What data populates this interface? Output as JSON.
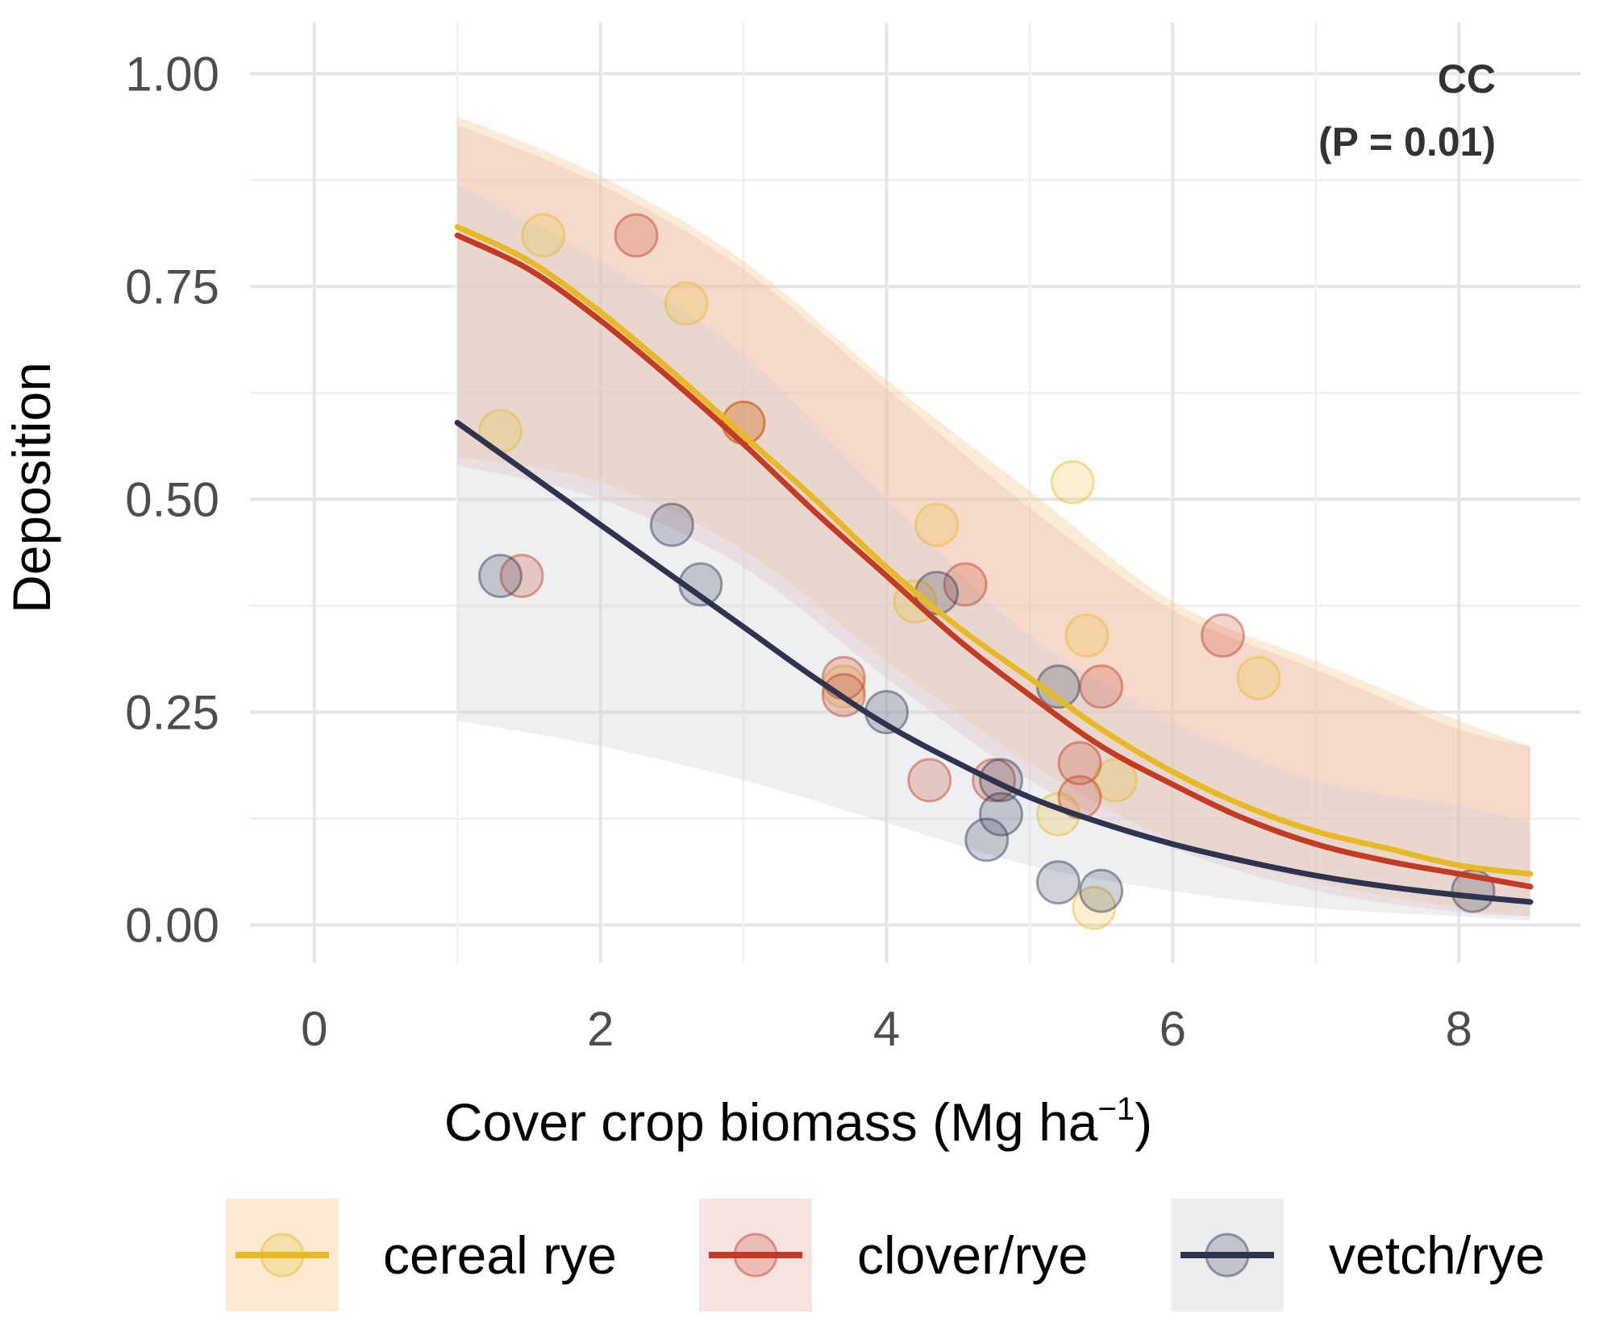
{
  "chart_data": {
    "type": "scatter",
    "title": "",
    "xlabel": "Cover crop biomass (Mg ha",
    "xlabel_superscript": "−1",
    "xlabel_close": ")",
    "ylabel": "Deposition",
    "xlim": [
      -0.45,
      8.85
    ],
    "ylim": [
      -0.045,
      1.06
    ],
    "x_ticks": [
      0,
      2,
      4,
      6,
      8
    ],
    "x_tick_labels": [
      "0",
      "2",
      "4",
      "6",
      "8"
    ],
    "y_ticks": [
      0,
      0.25,
      0.5,
      0.75,
      1.0
    ],
    "y_tick_labels": [
      "0.00",
      "0.25",
      "0.50",
      "0.75",
      "1.00"
    ],
    "grid": true,
    "annotation": {
      "line1": "CC",
      "line2": "(P = 0.01)"
    },
    "legend_position": "bottom",
    "series": [
      {
        "name": "cereal rye",
        "color": "#E8B923",
        "band_color": "#F7C88A",
        "points": [
          [
            1.3,
            0.58
          ],
          [
            1.6,
            0.81
          ],
          [
            2.6,
            0.73
          ],
          [
            3.0,
            0.59
          ],
          [
            3.7,
            0.28
          ],
          [
            4.2,
            0.38
          ],
          [
            4.35,
            0.47
          ],
          [
            5.2,
            0.13
          ],
          [
            5.3,
            0.52
          ],
          [
            5.4,
            0.34
          ],
          [
            5.45,
            0.02
          ],
          [
            5.6,
            0.17
          ],
          [
            6.6,
            0.29
          ]
        ],
        "fit": [
          [
            1.0,
            0.82
          ],
          [
            1.5,
            0.78
          ],
          [
            2.0,
            0.72
          ],
          [
            2.5,
            0.65
          ],
          [
            3.0,
            0.575
          ],
          [
            3.5,
            0.5
          ],
          [
            4.0,
            0.42
          ],
          [
            4.5,
            0.35
          ],
          [
            5.0,
            0.29
          ],
          [
            5.5,
            0.23
          ],
          [
            6.0,
            0.18
          ],
          [
            6.5,
            0.14
          ],
          [
            7.0,
            0.11
          ],
          [
            7.5,
            0.09
          ],
          [
            8.0,
            0.07
          ],
          [
            8.5,
            0.06
          ]
        ],
        "band_upper": [
          [
            1.0,
            0.95
          ],
          [
            2.0,
            0.88
          ],
          [
            3.0,
            0.78
          ],
          [
            4.0,
            0.64
          ],
          [
            5.0,
            0.51
          ],
          [
            6.0,
            0.38
          ],
          [
            7.0,
            0.31
          ],
          [
            8.0,
            0.24
          ],
          [
            8.5,
            0.21
          ]
        ],
        "band_lower": [
          [
            1.0,
            0.55
          ],
          [
            2.0,
            0.52
          ],
          [
            3.0,
            0.44
          ],
          [
            4.0,
            0.31
          ],
          [
            5.0,
            0.19
          ],
          [
            6.0,
            0.1
          ],
          [
            7.0,
            0.05
          ],
          [
            8.0,
            0.02
          ],
          [
            8.5,
            0.01
          ]
        ]
      },
      {
        "name": "clover/rye",
        "color": "#C23B22",
        "band_color": "#EAB6B6",
        "points": [
          [
            1.45,
            0.41
          ],
          [
            2.25,
            0.81
          ],
          [
            3.0,
            0.59
          ],
          [
            3.7,
            0.27
          ],
          [
            3.7,
            0.29
          ],
          [
            4.3,
            0.17
          ],
          [
            4.55,
            0.4
          ],
          [
            4.75,
            0.17
          ],
          [
            5.35,
            0.15
          ],
          [
            5.35,
            0.19
          ],
          [
            5.5,
            0.28
          ],
          [
            6.35,
            0.34
          ]
        ],
        "fit": [
          [
            1.0,
            0.81
          ],
          [
            1.5,
            0.77
          ],
          [
            2.0,
            0.71
          ],
          [
            2.5,
            0.64
          ],
          [
            3.0,
            0.565
          ],
          [
            3.5,
            0.485
          ],
          [
            4.0,
            0.41
          ],
          [
            4.5,
            0.335
          ],
          [
            5.0,
            0.27
          ],
          [
            5.5,
            0.21
          ],
          [
            6.0,
            0.165
          ],
          [
            6.5,
            0.125
          ],
          [
            7.0,
            0.095
          ],
          [
            7.5,
            0.075
          ],
          [
            8.0,
            0.06
          ],
          [
            8.5,
            0.045
          ]
        ],
        "band_upper": [
          [
            1.0,
            0.94
          ],
          [
            2.0,
            0.87
          ],
          [
            3.0,
            0.77
          ],
          [
            4.0,
            0.63
          ],
          [
            5.0,
            0.49
          ],
          [
            6.0,
            0.37
          ],
          [
            7.0,
            0.3
          ],
          [
            8.0,
            0.23
          ],
          [
            8.5,
            0.21
          ]
        ],
        "band_lower": [
          [
            1.0,
            0.54
          ],
          [
            2.0,
            0.5
          ],
          [
            3.0,
            0.42
          ],
          [
            4.0,
            0.29
          ],
          [
            5.0,
            0.17
          ],
          [
            6.0,
            0.09
          ],
          [
            7.0,
            0.04
          ],
          [
            8.0,
            0.015
          ],
          [
            8.5,
            0.01
          ]
        ]
      },
      {
        "name": "vetch/rye",
        "color": "#2E3350",
        "band_color": "#CFD2D8",
        "points": [
          [
            1.3,
            0.41
          ],
          [
            2.5,
            0.47
          ],
          [
            2.7,
            0.4
          ],
          [
            4.0,
            0.25
          ],
          [
            4.35,
            0.39
          ],
          [
            4.7,
            0.1
          ],
          [
            4.8,
            0.13
          ],
          [
            4.8,
            0.17
          ],
          [
            5.2,
            0.05
          ],
          [
            5.2,
            0.28
          ],
          [
            5.5,
            0.04
          ],
          [
            8.1,
            0.04
          ]
        ],
        "fit": [
          [
            1.0,
            0.59
          ],
          [
            1.5,
            0.53
          ],
          [
            2.0,
            0.47
          ],
          [
            2.5,
            0.41
          ],
          [
            3.0,
            0.35
          ],
          [
            3.5,
            0.29
          ],
          [
            4.0,
            0.235
          ],
          [
            4.5,
            0.19
          ],
          [
            5.0,
            0.15
          ],
          [
            5.5,
            0.12
          ],
          [
            6.0,
            0.095
          ],
          [
            6.5,
            0.075
          ],
          [
            7.0,
            0.058
          ],
          [
            7.5,
            0.045
          ],
          [
            8.0,
            0.035
          ],
          [
            8.5,
            0.027
          ]
        ],
        "band_upper": [
          [
            1.0,
            0.87
          ],
          [
            2.0,
            0.78
          ],
          [
            3.0,
            0.67
          ],
          [
            4.0,
            0.5
          ],
          [
            5.0,
            0.34
          ],
          [
            6.0,
            0.24
          ],
          [
            7.0,
            0.17
          ],
          [
            8.0,
            0.14
          ],
          [
            8.5,
            0.12
          ]
        ],
        "band_lower": [
          [
            1.0,
            0.24
          ],
          [
            2.0,
            0.21
          ],
          [
            3.0,
            0.17
          ],
          [
            4.0,
            0.12
          ],
          [
            5.0,
            0.07
          ],
          [
            6.0,
            0.04
          ],
          [
            7.0,
            0.02
          ],
          [
            8.0,
            0.01
          ],
          [
            8.5,
            0.005
          ]
        ]
      }
    ]
  }
}
